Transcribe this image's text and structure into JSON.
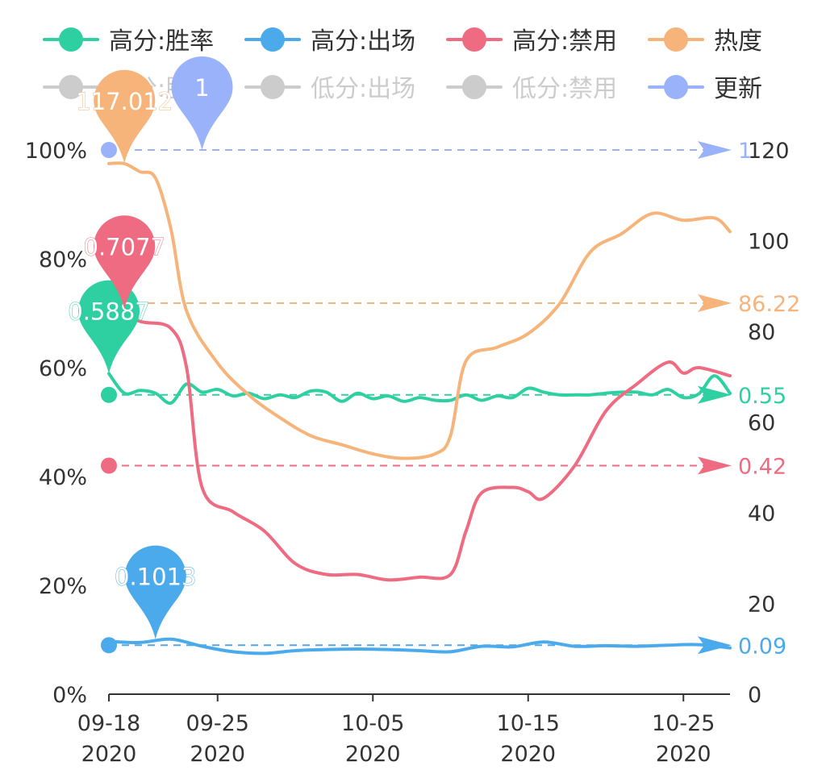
{
  "chart_data": {
    "type": "line",
    "x_tick_labels": [
      {
        "date": "09-18",
        "year": "2020"
      },
      {
        "date": "09-25",
        "year": "2020"
      },
      {
        "date": "10-05",
        "year": "2020"
      },
      {
        "date": "10-15",
        "year": "2020"
      },
      {
        "date": "10-25",
        "year": "2020"
      }
    ],
    "x_tick_dates": [
      "2020-09-18",
      "2020-09-25",
      "2020-10-05",
      "2020-10-15",
      "2020-10-25"
    ],
    "x_range": [
      "2020-09-18",
      "2020-10-28"
    ],
    "y_left": {
      "ticks": [
        "0%",
        "20%",
        "40%",
        "60%",
        "80%",
        "100%"
      ],
      "range": [
        0,
        1
      ]
    },
    "y_right": {
      "ticks": [
        "0",
        "20",
        "40",
        "60",
        "80",
        "100",
        "120"
      ],
      "range": [
        0,
        120
      ]
    },
    "grid": false,
    "legend_position": "top",
    "legend": [
      {
        "name": "高分:胜率",
        "color": "#2ed0a2",
        "active": true,
        "symbol": "line-circle"
      },
      {
        "name": "高分:出场",
        "color": "#4aaaec",
        "active": true,
        "symbol": "line-circle"
      },
      {
        "name": "高分:禁用",
        "color": "#ef6b81",
        "active": true,
        "symbol": "line-circle"
      },
      {
        "name": "热度",
        "color": "#f6b47a",
        "active": true,
        "symbol": "line-circle"
      },
      {
        "name": "低分:胜率",
        "color": "#cccccc",
        "active": false,
        "symbol": "line-circle"
      },
      {
        "name": "低分:出场",
        "color": "#cccccc",
        "active": false,
        "symbol": "line-circle"
      },
      {
        "name": "低分:禁用",
        "color": "#cccccc",
        "active": false,
        "symbol": "line-circle"
      },
      {
        "name": "更新",
        "color": "#99b2fa",
        "active": true,
        "symbol": "line-circle"
      }
    ],
    "series": [
      {
        "name": "高分:胜率",
        "axis": "left",
        "color": "#2ed0a2",
        "x": [
          "2020-09-18",
          "2020-09-19",
          "2020-09-20",
          "2020-09-21",
          "2020-09-22",
          "2020-09-23",
          "2020-09-24",
          "2020-09-25",
          "2020-09-26",
          "2020-09-27",
          "2020-09-28",
          "2020-09-29",
          "2020-09-30",
          "2020-10-01",
          "2020-10-02",
          "2020-10-03",
          "2020-10-04",
          "2020-10-05",
          "2020-10-06",
          "2020-10-07",
          "2020-10-08",
          "2020-10-09",
          "2020-10-10",
          "2020-10-11",
          "2020-10-12",
          "2020-10-13",
          "2020-10-14",
          "2020-10-15",
          "2020-10-16",
          "2020-10-17",
          "2020-10-18",
          "2020-10-19",
          "2020-10-20",
          "2020-10-21",
          "2020-10-22",
          "2020-10-23",
          "2020-10-24",
          "2020-10-25",
          "2020-10-26",
          "2020-10-27",
          "2020-10-28"
        ],
        "values": [
          0.589,
          0.553,
          0.558,
          0.553,
          0.535,
          0.57,
          0.555,
          0.56,
          0.548,
          0.553,
          0.543,
          0.55,
          0.545,
          0.557,
          0.555,
          0.538,
          0.553,
          0.543,
          0.548,
          0.538,
          0.545,
          0.54,
          0.54,
          0.55,
          0.54,
          0.548,
          0.545,
          0.562,
          0.555,
          0.55,
          0.55,
          0.55,
          0.553,
          0.555,
          0.555,
          0.55,
          0.56,
          0.545,
          0.552,
          0.585,
          0.553
        ]
      },
      {
        "name": "高分:出场",
        "axis": "left",
        "color": "#4aaaec",
        "x": [
          "2020-09-18",
          "2020-09-20",
          "2020-09-22",
          "2020-09-24",
          "2020-09-26",
          "2020-09-28",
          "2020-09-30",
          "2020-10-02",
          "2020-10-04",
          "2020-10-06",
          "2020-10-08",
          "2020-10-10",
          "2020-10-12",
          "2020-10-14",
          "2020-10-16",
          "2020-10-18",
          "2020-10-20",
          "2020-10-22",
          "2020-10-24",
          "2020-10-26",
          "2020-10-28"
        ],
        "values": [
          0.097,
          0.095,
          0.101,
          0.088,
          0.078,
          0.075,
          0.08,
          0.082,
          0.083,
          0.082,
          0.08,
          0.078,
          0.088,
          0.087,
          0.096,
          0.088,
          0.089,
          0.088,
          0.09,
          0.091,
          0.085
        ]
      },
      {
        "name": "高分:禁用",
        "axis": "left",
        "color": "#ef6b81",
        "x": [
          "2020-09-18",
          "2020-09-20",
          "2020-09-22",
          "2020-09-23",
          "2020-09-24",
          "2020-09-26",
          "2020-09-28",
          "2020-09-30",
          "2020-10-02",
          "2020-10-04",
          "2020-10-06",
          "2020-10-08",
          "2020-10-10",
          "2020-10-11",
          "2020-10-12",
          "2020-10-14",
          "2020-10-15",
          "2020-10-16",
          "2020-10-18",
          "2020-10-20",
          "2020-10-22",
          "2020-10-24",
          "2020-10-25",
          "2020-10-26",
          "2020-10-28"
        ],
        "values": [
          0.708,
          0.685,
          0.672,
          0.6,
          0.38,
          0.335,
          0.3,
          0.24,
          0.22,
          0.22,
          0.21,
          0.215,
          0.22,
          0.3,
          0.37,
          0.38,
          0.372,
          0.36,
          0.42,
          0.52,
          0.57,
          0.61,
          0.59,
          0.6,
          0.585
        ]
      },
      {
        "name": "热度",
        "axis": "right",
        "color": "#f6b47a",
        "x": [
          "2020-09-18",
          "2020-09-19",
          "2020-09-20",
          "2020-09-21",
          "2020-09-22",
          "2020-09-23",
          "2020-09-25",
          "2020-09-27",
          "2020-09-29",
          "2020-10-01",
          "2020-10-03",
          "2020-10-05",
          "2020-10-07",
          "2020-10-09",
          "2020-10-10",
          "2020-10-11",
          "2020-10-13",
          "2020-10-15",
          "2020-10-17",
          "2020-10-19",
          "2020-10-21",
          "2020-10-23",
          "2020-10-25",
          "2020-10-27",
          "2020-10-28"
        ],
        "values": [
          117.0,
          117.0,
          115.2,
          113.8,
          102.5,
          84.5,
          73.0,
          66.0,
          61.0,
          57.0,
          55.0,
          53.0,
          52.0,
          53.0,
          57.0,
          73.5,
          76.5,
          79.5,
          86.0,
          97.5,
          101.5,
          106.0,
          104.5,
          105.0,
          102.0
        ]
      }
    ],
    "update_marker": {
      "name": "更新",
      "color": "#99b2fa",
      "date": "2020-09-18",
      "value": 1
    },
    "mark_points": [
      {
        "series": "热度",
        "label": "117.012",
        "date": "2020-09-19",
        "value": 117.012
      },
      {
        "series": "更新",
        "label": "1",
        "date": "2020-09-24",
        "value": 1
      },
      {
        "series": "高分:禁用",
        "label": "0.7077",
        "date": "2020-09-19",
        "value": 0.7077
      },
      {
        "series": "高分:胜率",
        "label": "0.5887",
        "date": "2020-09-18",
        "value": 0.5887
      },
      {
        "series": "高分:出场",
        "label": "0.1013",
        "date": "2020-09-21",
        "value": 0.1013
      }
    ],
    "mark_lines": [
      {
        "series": "更新",
        "label": "1",
        "value": 1,
        "axis": "left"
      },
      {
        "series": "热度",
        "label": "86.22",
        "value": 86.22,
        "axis": "right"
      },
      {
        "series": "高分:胜率",
        "label": "0.55",
        "value": 0.55,
        "axis": "left"
      },
      {
        "series": "高分:禁用",
        "label": "0.42",
        "value": 0.42,
        "axis": "left"
      },
      {
        "series": "高分:出场",
        "label": "0.09",
        "value": 0.09,
        "axis": "left"
      }
    ]
  }
}
